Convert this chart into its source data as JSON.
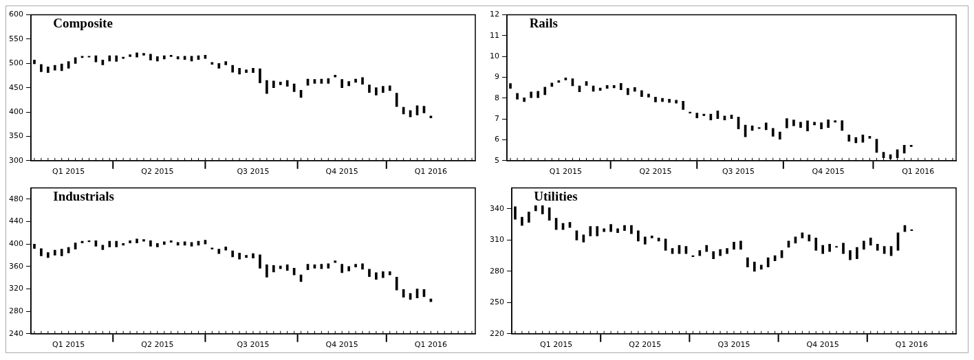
{
  "chart_data": [
    {
      "type": "bar",
      "title": "Composite",
      "categories": [
        null,
        null,
        null,
        null,
        null,
        "Q1 2015",
        null,
        null,
        null,
        null,
        null,
        null,
        null,
        null,
        null,
        null,
        null,
        null,
        "Q2 2015",
        null,
        null,
        null,
        null,
        null,
        null,
        null,
        null,
        null,
        null,
        null,
        null,
        null,
        "Q3 2015",
        null,
        null,
        null,
        null,
        null,
        null,
        null,
        null,
        null,
        null,
        null,
        null,
        "Q4 2015",
        null,
        null,
        null,
        null,
        null,
        null,
        null,
        null,
        null,
        null,
        null,
        null,
        "Q1 2016",
        null,
        null,
        null,
        null,
        null,
        null
      ],
      "base": [
        499,
        483,
        481,
        486,
        485,
        490,
        500,
        512,
        513,
        503,
        497,
        505,
        504,
        510,
        514,
        513,
        517,
        507,
        505,
        509,
        514,
        509,
        508,
        505,
        508,
        510,
        498,
        490,
        497,
        482,
        478,
        481,
        481,
        460,
        438,
        450,
        456,
        453,
        442,
        430,
        455,
        459,
        459,
        459,
        472,
        450,
        454,
        461,
        457,
        440,
        435,
        440,
        444,
        411,
        396,
        390,
        394,
        398,
        388,
        null,
        null,
        null,
        null,
        null,
        null
      ],
      "values": [
        8,
        15,
        12,
        10,
        14,
        14,
        12,
        3,
        2,
        13,
        10,
        11,
        12,
        3,
        4,
        9,
        4,
        12,
        9,
        7,
        3,
        5,
        7,
        10,
        8,
        7,
        4,
        10,
        7,
        14,
        12,
        6,
        9,
        29,
        27,
        14,
        6,
        12,
        16,
        15,
        13,
        8,
        9,
        10,
        4,
        17,
        9,
        7,
        14,
        16,
        15,
        13,
        10,
        28,
        14,
        13,
        19,
        14,
        4,
        null,
        null,
        null,
        null,
        null,
        null
      ],
      "color": "#000000",
      "ylim": [
        300,
        600
      ],
      "yticks": [
        300,
        350,
        400,
        450,
        500,
        550,
        600
      ]
    },
    {
      "type": "bar",
      "title": "Rails",
      "categories": [
        null,
        null,
        null,
        null,
        null,
        null,
        null,
        null,
        "Q1 2015",
        null,
        null,
        null,
        null,
        null,
        null,
        null,
        null,
        null,
        null,
        null,
        null,
        "Q2 2015",
        null,
        null,
        null,
        null,
        null,
        null,
        null,
        null,
        null,
        null,
        null,
        "Q3 2015",
        null,
        null,
        null,
        null,
        null,
        null,
        null,
        null,
        null,
        null,
        null,
        null,
        "Q4 2015",
        null,
        null,
        null,
        null,
        null,
        null,
        null,
        null,
        null,
        null,
        null,
        null,
        "Q1 2016",
        null,
        null,
        null,
        null,
        null
      ],
      "base": [
        8.47,
        7.95,
        7.83,
        8.02,
        8.02,
        8.16,
        8.56,
        8.76,
        8.87,
        8.59,
        8.3,
        8.61,
        8.33,
        8.37,
        8.47,
        8.49,
        8.4,
        8.16,
        8.33,
        8.07,
        8.05,
        7.82,
        7.83,
        7.79,
        7.76,
        7.45,
        7.28,
        7.05,
        7.16,
        6.95,
        7.02,
        6.95,
        7.02,
        6.52,
        6.14,
        6.45,
        6.54,
        6.48,
        6.17,
        6.03,
        6.57,
        6.67,
        6.59,
        6.42,
        6.71,
        6.52,
        6.59,
        6.84,
        6.45,
        5.93,
        5.85,
        5.88,
        6.07,
        5.39,
        5.14,
        5.09,
        5.14,
        5.36,
        5.67,
        null,
        null,
        null,
        null,
        null,
        null
      ],
      "values": [
        0.23,
        0.28,
        0.19,
        0.28,
        0.31,
        0.37,
        0.17,
        0.08,
        0.1,
        0.34,
        0.29,
        0.19,
        0.26,
        0.12,
        0.14,
        0.12,
        0.31,
        0.31,
        0.18,
        0.29,
        0.15,
        0.23,
        0.16,
        0.16,
        0.14,
        0.4,
        0.05,
        0.23,
        0.07,
        0.28,
        0.37,
        0.19,
        0.17,
        0.57,
        0.57,
        0.22,
        0.05,
        0.33,
        0.38,
        0.35,
        0.45,
        0.28,
        0.26,
        0.49,
        0.14,
        0.3,
        0.37,
        0.08,
        0.47,
        0.31,
        0.26,
        0.36,
        0.1,
        0.64,
        0.26,
        0.2,
        0.39,
        0.38,
        0.07,
        null,
        null,
        null,
        null,
        null,
        null
      ],
      "color": "#000000",
      "ylim": [
        5,
        12
      ],
      "yticks": [
        5,
        6,
        7,
        8,
        9,
        10,
        11,
        12
      ]
    },
    {
      "type": "bar",
      "title": "Industrials",
      "categories": [
        null,
        null,
        null,
        null,
        null,
        "Q1 2015",
        null,
        null,
        null,
        null,
        null,
        null,
        null,
        null,
        null,
        null,
        null,
        null,
        "Q2 2015",
        null,
        null,
        null,
        null,
        null,
        null,
        null,
        null,
        null,
        null,
        null,
        null,
        null,
        "Q3 2015",
        null,
        null,
        null,
        null,
        null,
        null,
        null,
        null,
        null,
        null,
        null,
        null,
        "Q4 2015",
        null,
        null,
        null,
        null,
        null,
        null,
        null,
        null,
        null,
        null,
        null,
        null,
        "Q1 2016",
        null,
        null,
        null,
        null,
        null,
        null
      ],
      "base": [
        392,
        379,
        376,
        380,
        379,
        384,
        391,
        402,
        404,
        396,
        390,
        395,
        395,
        398,
        402,
        402,
        405,
        396,
        395,
        399,
        403,
        398,
        398,
        396,
        398,
        400,
        391,
        383,
        389,
        377,
        373,
        376,
        375,
        357,
        341,
        350,
        356,
        353,
        345,
        333,
        354,
        357,
        356,
        357,
        367,
        349,
        352,
        359,
        355,
        342,
        337,
        340,
        345,
        318,
        305,
        301,
        304,
        306,
        297,
        null,
        null,
        null,
        null,
        null,
        null
      ],
      "values": [
        8,
        13,
        9,
        9,
        12,
        10,
        11,
        3,
        2,
        10,
        8,
        10,
        10,
        3,
        4,
        7,
        3,
        10,
        6,
        5,
        3,
        5,
        6,
        7,
        7,
        7,
        2,
        8,
        6,
        11,
        11,
        4,
        8,
        24,
        22,
        12,
        5,
        10,
        12,
        12,
        10,
        6,
        8,
        8,
        3,
        15,
        8,
        5,
        10,
        13,
        12,
        11,
        6,
        23,
        14,
        11,
        16,
        13,
        5,
        null,
        null,
        null,
        null,
        null,
        null
      ],
      "color": "#000000",
      "ylim": [
        240,
        500
      ],
      "yticks": [
        240,
        280,
        320,
        360,
        400,
        440,
        480
      ]
    },
    {
      "type": "bar",
      "title": "Utilities",
      "categories": [
        null,
        null,
        null,
        null,
        null,
        null,
        "Q1 2015",
        null,
        null,
        null,
        null,
        null,
        null,
        null,
        null,
        null,
        null,
        null,
        null,
        "Q2 2015",
        null,
        null,
        null,
        null,
        null,
        null,
        null,
        null,
        null,
        null,
        null,
        null,
        "Q3 2015",
        null,
        null,
        null,
        null,
        null,
        null,
        null,
        null,
        null,
        null,
        null,
        null,
        "Q4 2015",
        null,
        null,
        null,
        null,
        null,
        null,
        null,
        null,
        null,
        null,
        null,
        null,
        "Q1 2016",
        null,
        null,
        null,
        null,
        null,
        null
      ],
      "base": [
        330,
        324,
        327,
        338,
        335,
        329,
        320,
        320,
        322,
        310,
        308,
        314,
        314,
        318,
        318,
        317,
        319,
        316,
        309,
        306,
        312,
        309,
        300,
        297,
        297,
        297,
        294,
        295,
        299,
        292,
        295,
        297,
        301,
        301,
        284,
        280,
        282,
        284,
        290,
        293,
        303,
        307,
        312,
        309,
        300,
        297,
        299,
        303,
        297,
        291,
        292,
        301,
        305,
        300,
        297,
        295,
        300,
        318,
        319,
        null,
        null,
        null,
        null,
        null,
        null
      ],
      "values": [
        12,
        8,
        10,
        5,
        8,
        12,
        11,
        6,
        5,
        9,
        7,
        9,
        9,
        3,
        7,
        4,
        5,
        8,
        10,
        7,
        2,
        3,
        11,
        5,
        8,
        7,
        1,
        5,
        6,
        7,
        6,
        5,
        7,
        8,
        9,
        9,
        4,
        9,
        5,
        7,
        6,
        6,
        5,
        6,
        12,
        8,
        7,
        1,
        10,
        9,
        11,
        8,
        7,
        6,
        7,
        9,
        17,
        6,
        1,
        null,
        null,
        null,
        null,
        null,
        null
      ],
      "color": "#000000",
      "ylim": [
        220,
        360
      ],
      "yticks": [
        220,
        250,
        280,
        310,
        340
      ]
    }
  ]
}
